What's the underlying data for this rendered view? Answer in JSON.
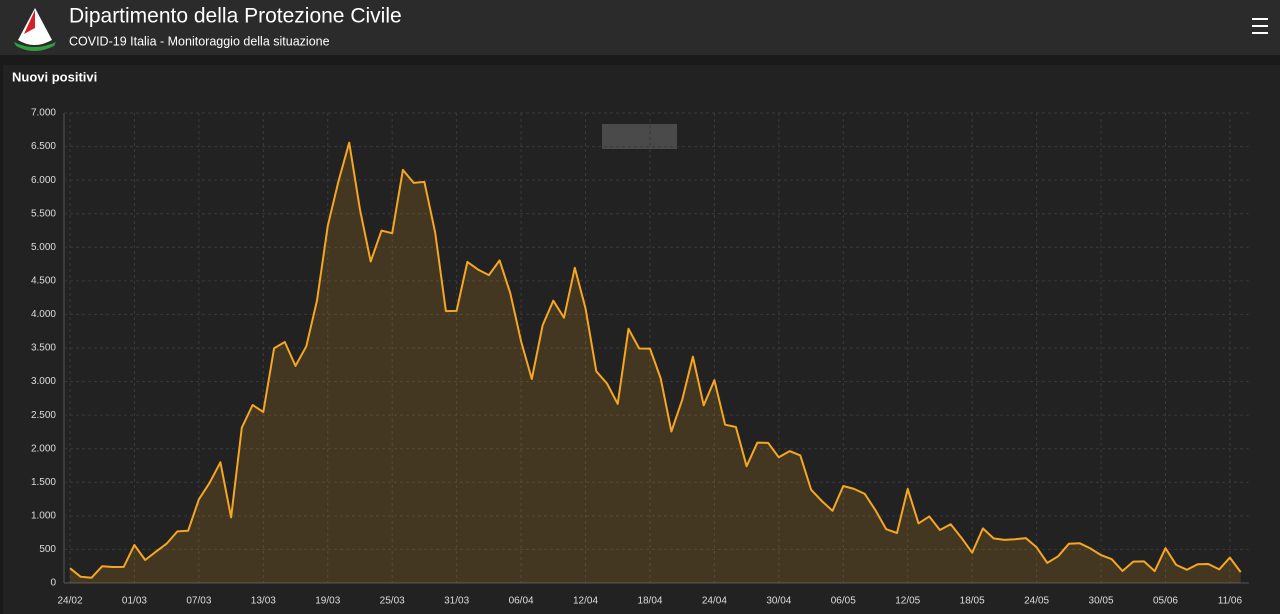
{
  "header": {
    "title": "Dipartimento della Protezione Civile",
    "subtitle": "COVID-19 Italia - Monitoraggio della situazione"
  },
  "chart_data": {
    "type": "area",
    "title": "Nuovi positivi",
    "color": "#f5a623",
    "grid": true,
    "categories": [
      "24/02",
      null,
      null,
      null,
      null,
      null,
      "01/03",
      null,
      null,
      null,
      null,
      null,
      "07/03",
      null,
      null,
      null,
      null,
      null,
      "13/03",
      null,
      null,
      null,
      null,
      null,
      "19/03",
      null,
      null,
      null,
      null,
      null,
      "25/03",
      null,
      null,
      null,
      null,
      null,
      "31/03",
      null,
      null,
      null,
      null,
      null,
      "06/04",
      null,
      null,
      null,
      null,
      null,
      "12/04",
      null,
      null,
      null,
      null,
      null,
      "18/04",
      null,
      null,
      null,
      null,
      null,
      "24/04",
      null,
      null,
      null,
      null,
      null,
      "30/04",
      null,
      null,
      null,
      null,
      null,
      "06/05",
      null,
      null,
      null,
      null,
      null,
      "12/05",
      null,
      null,
      null,
      null,
      null,
      "18/05",
      null,
      null,
      null,
      null,
      null,
      "24/05",
      null,
      null,
      null,
      null,
      null,
      "30/05",
      null,
      null,
      null,
      null,
      null,
      "05/06",
      null,
      null,
      null,
      null,
      null,
      "11/06",
      null
    ],
    "values": [
      221,
      93,
      78,
      250,
      238,
      240,
      566,
      342,
      466,
      587,
      769,
      778,
      1247,
      1492,
      1797,
      977,
      2313,
      2651,
      2547,
      3497,
      3590,
      3233,
      3526,
      4207,
      5322,
      5986,
      6557,
      5560,
      4789,
      5249,
      5210,
      6153,
      5959,
      5974,
      5217,
      4050,
      4053,
      4782,
      4668,
      4585,
      4805,
      4316,
      3599,
      3039,
      3836,
      4204,
      3951,
      4694,
      4092,
      3153,
      2972,
      2667,
      3786,
      3493,
      3491,
      3047,
      2256,
      2729,
      3370,
      2646,
      3021,
      2357,
      2324,
      1739,
      2091,
      2086,
      1872,
      1965,
      1900,
      1389,
      1221,
      1075,
      1444,
      1401,
      1327,
      1083,
      802,
      744,
      1402,
      888,
      992,
      789,
      875,
      675,
      451,
      813,
      665,
      642,
      652,
      669,
      531,
      300,
      397,
      584,
      593,
      516,
      416,
      355,
      178,
      318,
      321,
      177,
      518,
      270,
      197,
      280,
      283,
      202,
      379,
      163
    ],
    "ylim": [
      0,
      7000
    ],
    "yticks": [
      0,
      500,
      {
        "value": 1000,
        "label": "1.000"
      },
      {
        "value": 1500,
        "label": "1.500"
      },
      {
        "value": 2000,
        "label": "2.000"
      },
      {
        "value": 2500,
        "label": "2.500"
      },
      {
        "value": 3000,
        "label": "3.000"
      },
      {
        "value": 3500,
        "label": "3.500"
      },
      {
        "value": 4000,
        "label": "4.000"
      },
      {
        "value": 4500,
        "label": "4.500"
      },
      {
        "value": 5000,
        "label": "5.000"
      },
      {
        "value": 5500,
        "label": "5.500"
      },
      {
        "value": 6000,
        "label": "6.000"
      },
      {
        "value": 6500,
        "label": "6.500"
      },
      {
        "value": 7000,
        "label": "7.000"
      }
    ]
  }
}
